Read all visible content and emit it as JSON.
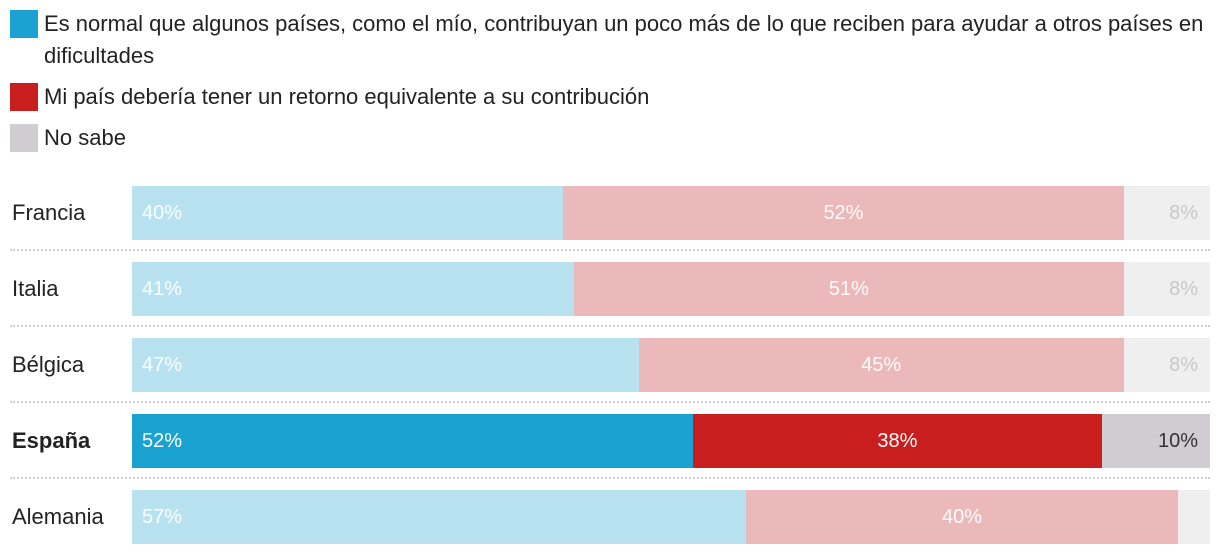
{
  "chart_data": {
    "type": "bar",
    "orientation": "horizontal",
    "stacked": true,
    "categories": [
      "Francia",
      "Italia",
      "Bélgica",
      "España",
      "Alemania"
    ],
    "highlight": "España",
    "series": [
      {
        "name": "Es normal que algunos países, como el mío, contribuyan un poco más de lo que reciben para ayudar a otros países en dificultades",
        "color": "#1aa3d0",
        "muted_color": "#b8e2f0",
        "values": [
          40,
          41,
          47,
          52,
          57
        ],
        "labels": [
          "40%",
          "41%",
          "47%",
          "52%",
          "57%"
        ]
      },
      {
        "name": "Mi país debería tener un retorno equivalente a su contribución",
        "color": "#c81e1e",
        "muted_color": "#ebb9b9",
        "values": [
          52,
          51,
          45,
          38,
          40
        ],
        "labels": [
          "52%",
          "51%",
          "45%",
          "38%",
          "40%"
        ]
      },
      {
        "name": "No sabe",
        "color": "#cfcdd2",
        "muted_color": "#efefef",
        "values": [
          8,
          8,
          8,
          10,
          3
        ],
        "labels": [
          "8%",
          "8%",
          "8%",
          "10%",
          ""
        ]
      }
    ],
    "xlim": [
      0,
      100
    ],
    "legend_position": "top"
  }
}
